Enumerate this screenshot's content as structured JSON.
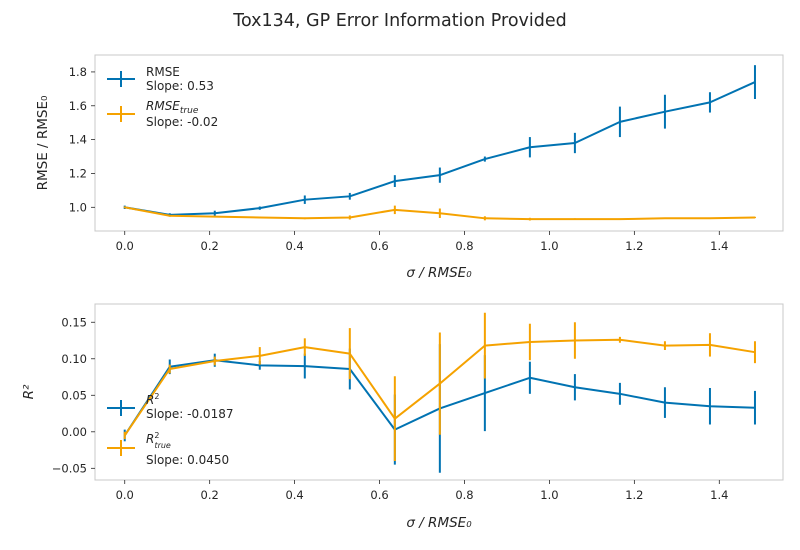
{
  "figure": {
    "title": "Tox134, GP Error Information Provided"
  },
  "colors": {
    "blue": "#0173b2",
    "orange": "#f5a200",
    "frame": "#c8c8c8",
    "text": "#262626"
  },
  "chart_data": [
    {
      "type": "line",
      "xlabel": "σ / RMSE₀",
      "ylabel": "RMSE / RMSE₀",
      "xlim": [
        -0.07,
        1.55
      ],
      "ylim": [
        0.86,
        1.9
      ],
      "xticks": [
        0.0,
        0.2,
        0.4,
        0.6,
        0.8,
        1.0,
        1.2,
        1.4
      ],
      "xtick_labels": [
        "0.0",
        "0.2",
        "0.4",
        "0.6",
        "0.8",
        "1.0",
        "1.2",
        "1.4"
      ],
      "yticks": [
        1.0,
        1.2,
        1.4,
        1.6,
        1.8
      ],
      "ytick_labels": [
        "1.0",
        "1.2",
        "1.4",
        "1.6",
        "1.8"
      ],
      "grid": false,
      "legend_position": "upper-left",
      "x": [
        0.0,
        0.106,
        0.212,
        0.318,
        0.424,
        0.53,
        0.636,
        0.742,
        0.848,
        0.954,
        1.06,
        1.166,
        1.272,
        1.378,
        1.484
      ],
      "series": [
        {
          "name": "RMSE",
          "legend_main": "RMSE",
          "legend_sub": "",
          "slope_text": "Slope: 0.53",
          "color": "#0173b2",
          "values": [
            1.0,
            0.955,
            0.965,
            0.995,
            1.045,
            1.065,
            1.155,
            1.19,
            1.285,
            1.355,
            1.38,
            1.505,
            1.565,
            1.62,
            1.74
          ],
          "errors": [
            0.01,
            0.01,
            0.015,
            0.01,
            0.025,
            0.02,
            0.035,
            0.045,
            0.015,
            0.06,
            0.06,
            0.09,
            0.1,
            0.06,
            0.1
          ]
        },
        {
          "name": "RMSE_true",
          "legend_main": "RMSE",
          "legend_sub": "true",
          "slope_text": "Slope: -0.02",
          "color": "#f5a200",
          "values": [
            1.0,
            0.95,
            0.945,
            0.94,
            0.935,
            0.94,
            0.985,
            0.965,
            0.935,
            0.93,
            0.93,
            0.93,
            0.935,
            0.935,
            0.94
          ],
          "errors": [
            0.005,
            0.005,
            0.005,
            0.005,
            0.005,
            0.012,
            0.025,
            0.028,
            0.012,
            0.008,
            0.005,
            0.004,
            0.004,
            0.004,
            0.004
          ]
        }
      ]
    },
    {
      "type": "line",
      "xlabel": "σ / RMSE₀",
      "ylabel": "R²",
      "xlim": [
        -0.07,
        1.55
      ],
      "ylim": [
        -0.066,
        0.175
      ],
      "xticks": [
        0.0,
        0.2,
        0.4,
        0.6,
        0.8,
        1.0,
        1.2,
        1.4
      ],
      "xtick_labels": [
        "0.0",
        "0.2",
        "0.4",
        "0.6",
        "0.8",
        "1.0",
        "1.2",
        "1.4"
      ],
      "yticks": [
        -0.05,
        0.0,
        0.05,
        0.1,
        0.15
      ],
      "ytick_labels": [
        "−0.05",
        "0.00",
        "0.05",
        "0.10",
        "0.15"
      ],
      "grid": false,
      "legend_position": "lower-left",
      "x": [
        0.0,
        0.106,
        0.212,
        0.318,
        0.424,
        0.53,
        0.636,
        0.742,
        0.848,
        0.954,
        1.06,
        1.166,
        1.272,
        1.378,
        1.484
      ],
      "series": [
        {
          "name": "R2",
          "legend_main": "R",
          "legend_sup": "2",
          "legend_sub": "",
          "slope_text": "Slope: -0.0187",
          "color": "#0173b2",
          "values": [
            -0.005,
            0.089,
            0.098,
            0.091,
            0.09,
            0.086,
            0.003,
            0.032,
            0.053,
            0.074,
            0.061,
            0.052,
            0.04,
            0.035,
            0.033
          ],
          "errors": [
            0.008,
            0.01,
            0.009,
            0.006,
            0.017,
            0.028,
            0.048,
            0.088,
            0.052,
            0.022,
            0.018,
            0.015,
            0.021,
            0.025,
            0.023
          ]
        },
        {
          "name": "R2_true",
          "legend_main": "R",
          "legend_sup": "2",
          "legend_sub": "true",
          "slope_text": "Slope: 0.0450",
          "color": "#f5a200",
          "values": [
            -0.005,
            0.086,
            0.097,
            0.104,
            0.116,
            0.107,
            0.018,
            0.066,
            0.118,
            0.123,
            0.125,
            0.126,
            0.118,
            0.119,
            0.109
          ],
          "errors": [
            0.005,
            0.006,
            0.006,
            0.012,
            0.012,
            0.035,
            0.058,
            0.07,
            0.045,
            0.025,
            0.025,
            0.004,
            0.006,
            0.016,
            0.015
          ]
        }
      ]
    }
  ]
}
